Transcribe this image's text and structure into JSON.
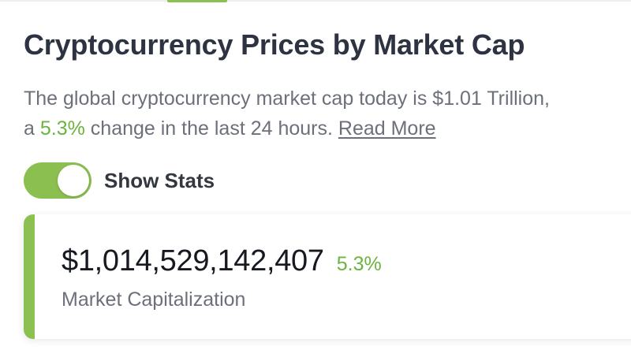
{
  "colors": {
    "accent_green": "#8cc151",
    "change_green": "#6cb33f",
    "title": "#2d3340",
    "body_text": "#6c707a"
  },
  "header": {
    "title": "Cryptocurrency Prices by Market Cap"
  },
  "summary": {
    "line1": "The global cryptocurrency market cap today is $1.01 Trillion,",
    "line2_prefix": "a ",
    "change_pct": "5.3%",
    "line2_suffix": " change in the last 24 hours. ",
    "read_more": "Read More"
  },
  "stats_toggle": {
    "label": "Show Stats",
    "checked": true
  },
  "stat_card": {
    "value": "$1,014,529,142,407",
    "change": "5.3%",
    "label": "Market Capitalization"
  }
}
